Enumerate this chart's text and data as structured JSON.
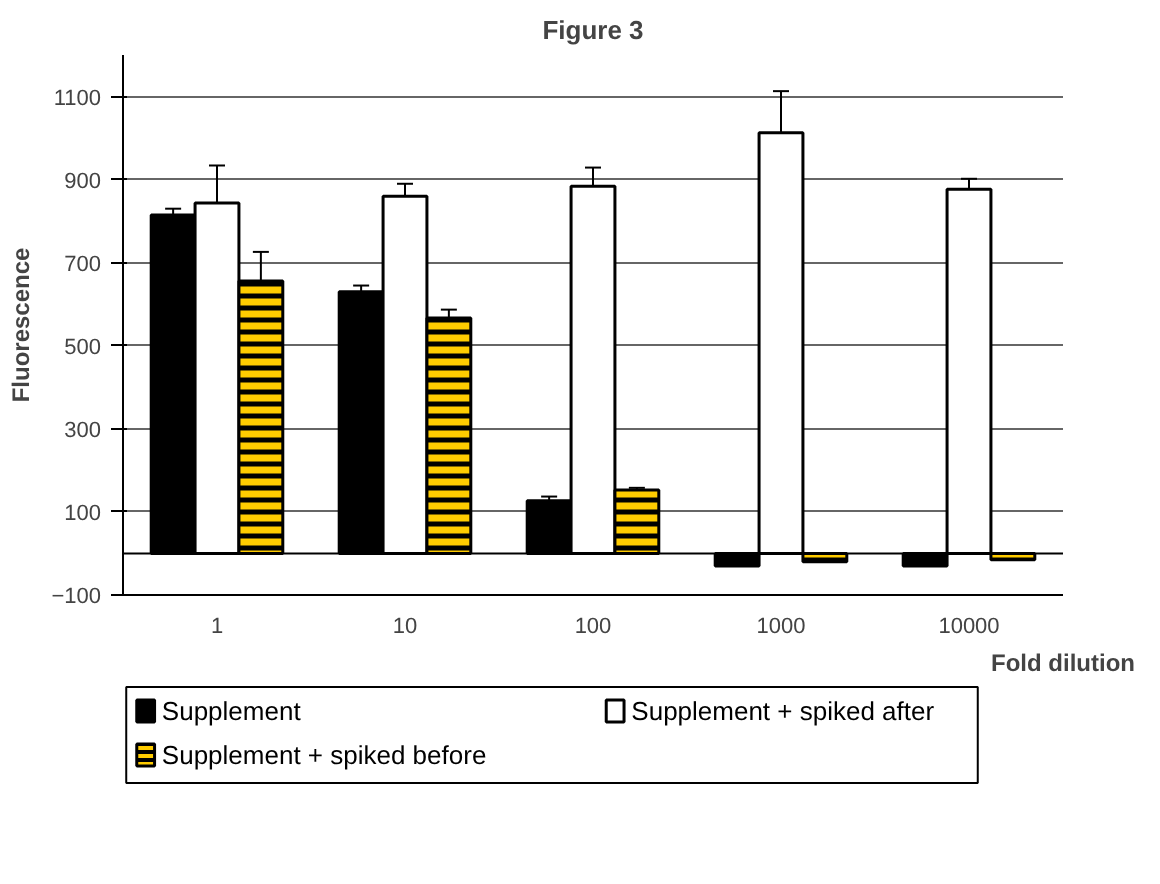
{
  "chart_data": {
    "type": "bar",
    "title": "Figure 3",
    "xlabel": "Fold dilution",
    "ylabel": "Fluorescence",
    "categories": [
      "1",
      "10",
      "100",
      "1000",
      "10000"
    ],
    "series": [
      {
        "name": "Supplement",
        "color": "#000000",
        "values": [
          815,
          630,
          127,
          -30,
          -30
        ],
        "errors": [
          15,
          15,
          10,
          null,
          null
        ]
      },
      {
        "name": "Supplement + spiked after",
        "color": "#ffffff",
        "values": [
          844,
          860,
          884,
          1013,
          877
        ],
        "errors": [
          90,
          30,
          45,
          100,
          25
        ]
      },
      {
        "name": "Supplement + spiked before",
        "color": "#ffcc00",
        "values": [
          656,
          567,
          153,
          -20,
          -15
        ],
        "errors": [
          70,
          20,
          5,
          null,
          null
        ]
      }
    ],
    "ylim": [
      -100,
      1200
    ],
    "yticks": [
      -100,
      100,
      300,
      500,
      700,
      900,
      1100
    ],
    "grid": "y",
    "legend": "bottom"
  }
}
